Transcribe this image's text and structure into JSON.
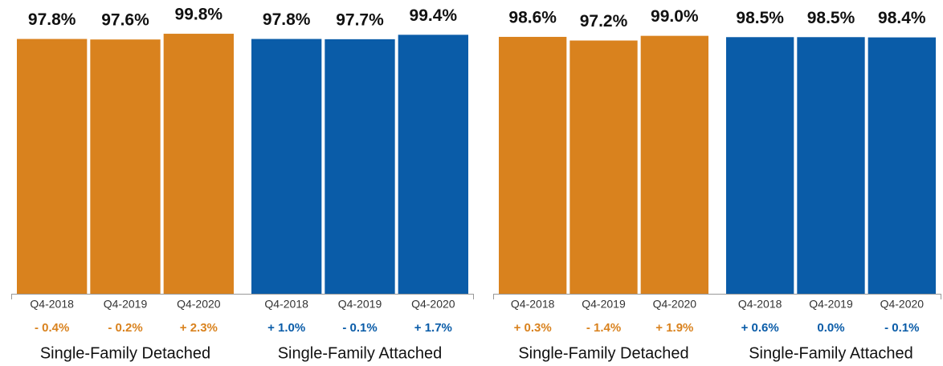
{
  "chart_data": [
    {
      "type": "bar",
      "ylim": [
        0,
        100
      ],
      "groups": [
        {
          "name": "Single-Family Detached",
          "color": "#d9821e",
          "categories": [
            "Q4-2018",
            "Q4-2019",
            "Q4-2020"
          ],
          "values": [
            97.8,
            97.6,
            99.8
          ],
          "value_labels": [
            "97.8%",
            "97.6%",
            "99.8%"
          ],
          "changes": [
            "- 0.4%",
            "- 0.2%",
            "+ 2.3%"
          ]
        },
        {
          "name": "Single-Family Attached",
          "color": "#0a5ca8",
          "categories": [
            "Q4-2018",
            "Q4-2019",
            "Q4-2020"
          ],
          "values": [
            97.8,
            97.7,
            99.4
          ],
          "value_labels": [
            "97.8%",
            "97.7%",
            "99.4%"
          ],
          "changes": [
            "+ 1.0%",
            "- 0.1%",
            "+ 1.7%"
          ]
        }
      ]
    },
    {
      "type": "bar",
      "ylim": [
        0,
        100
      ],
      "groups": [
        {
          "name": "Single-Family Detached",
          "color": "#d9821e",
          "categories": [
            "Q4-2018",
            "Q4-2019",
            "Q4-2020"
          ],
          "values": [
            98.6,
            97.2,
            99.0
          ],
          "value_labels": [
            "98.6%",
            "97.2%",
            "99.0%"
          ],
          "changes": [
            "+ 0.3%",
            "- 1.4%",
            "+ 1.9%"
          ]
        },
        {
          "name": "Single-Family Attached",
          "color": "#0a5ca8",
          "categories": [
            "Q4-2018",
            "Q4-2019",
            "Q4-2020"
          ],
          "values": [
            98.5,
            98.5,
            98.4
          ],
          "value_labels": [
            "98.5%",
            "98.5%",
            "98.4%"
          ],
          "changes": [
            "+ 0.6%",
            "0.0%",
            "- 0.1%"
          ]
        }
      ]
    }
  ]
}
